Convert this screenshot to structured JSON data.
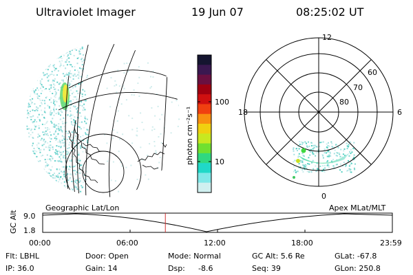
{
  "header": {
    "title": "Ultraviolet Imager",
    "date": "19 Jun 07",
    "time": "08:25:02 UT"
  },
  "colorbar": {
    "unit_label": "photon cm⁻²s⁻¹",
    "ticks": [
      "100",
      "10"
    ],
    "colors": [
      "#151530",
      "#3a1850",
      "#6a1040",
      "#a00010",
      "#d01010",
      "#f04010",
      "#f89010",
      "#f0d010",
      "#c8e820",
      "#70e030",
      "#30d880",
      "#20d8c8",
      "#80e8e8",
      "#d0f0f0"
    ]
  },
  "left_panel": {
    "label": "Geographic Lat/Lon"
  },
  "right_panel": {
    "label": "Apex  MLat/MLT",
    "mlt_labels": {
      "top": "12",
      "left": "18",
      "right": "6",
      "bottom": "0"
    },
    "lat_labels": [
      "60",
      "70",
      "80"
    ]
  },
  "altitude_plot": {
    "ylabel": "GC Alt",
    "ytick_top": "9.0",
    "ytick_bottom": "1.8",
    "xticks": [
      "00:00",
      "06:00",
      "12:00",
      "18:00",
      "23:59"
    ],
    "current_marker_hour": 8.42,
    "marker_color": "#d03030"
  },
  "info": {
    "flt": "Flt: LBHL",
    "ip": "IP: 36.0",
    "door": "Door: Open",
    "gain": "Gain: 14",
    "mode": "Mode: Normal",
    "dsp_label": "Dsp:",
    "dsp_value": "-8.6",
    "gcalt": "GC Alt: 5.6 Re",
    "seq": "Seq: 39",
    "glat": "GLat: -67.8",
    "glon": "GLon: 250.8"
  }
}
